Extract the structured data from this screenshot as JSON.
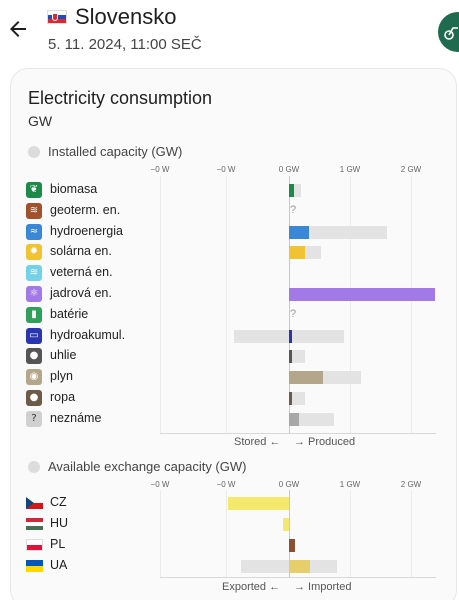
{
  "header": {
    "country": "Slovensko",
    "datetime": "5. 11. 2024, 11:00 SEČ",
    "back_icon": "arrow-left-icon",
    "fab_icon": "bicycle-icon",
    "fab_color": "#1f6b4f"
  },
  "card": {
    "title": "Electricity consumption",
    "unit": "GW"
  },
  "installed": {
    "title": "Installed capacity (GW)",
    "ticks": [
      "−0 W",
      "−0 W",
      "0 GW",
      "1 GW",
      "2 GW"
    ],
    "rows": [
      {
        "label": "biomasa",
        "icon": "leaf-icon",
        "color": "#1e8a4a",
        "capacity": 0.2,
        "production": 0.09
      },
      {
        "label": "geoterm. en.",
        "icon": "geothermal-icon",
        "color": "#a0522d",
        "unknown": "?"
      },
      {
        "label": "hydroenergia",
        "icon": "water-icon",
        "color": "#3a87d6",
        "capacity": 1.6,
        "production": 0.33
      },
      {
        "label": "solárna en.",
        "icon": "sun-icon",
        "color": "#f1c232",
        "capacity": 0.52,
        "production": 0.27
      },
      {
        "label": "veterná en.",
        "icon": "wind-icon",
        "color": "#72d3e8"
      },
      {
        "label": "jadrová en.",
        "icon": "atom-icon",
        "color": "#a27ae8",
        "capacity": 2.4,
        "production": 2.4
      },
      {
        "label": "batérie",
        "icon": "battery-icon",
        "color": "#2fa05a",
        "unknown": "?"
      },
      {
        "label": "hydroakumul.",
        "icon": "pumped-storage-icon",
        "color": "#2a35b0",
        "capacity": 0.9,
        "storage_capacity": 0.9,
        "production": 0.05
      },
      {
        "label": "uhlie",
        "icon": "coal-icon",
        "color": "#555555",
        "capacity": 0.27,
        "production": 0.02
      },
      {
        "label": "plyn",
        "icon": "gas-icon",
        "color": "#b4a68a",
        "capacity": 1.18,
        "production": 0.55
      },
      {
        "label": "ropa",
        "icon": "oil-icon",
        "color": "#6e5a48",
        "capacity": 0.26,
        "production": 0.03
      },
      {
        "label": "neznáme",
        "icon": "question-icon",
        "color": "#a8a8a8",
        "capacity": 0.74,
        "production": 0.16
      }
    ],
    "note_left": "Stored ←",
    "note_right": "→ Produced"
  },
  "exchange": {
    "title": "Available exchange capacity (GW)",
    "ticks": [
      "−0 W",
      "−0 W",
      "0 GW",
      "1 GW",
      "2 GW"
    ],
    "rows": [
      {
        "label": "CZ",
        "icon": "flag-cz-icon",
        "color": "#f4e96c",
        "value": -1.0
      },
      {
        "label": "HU",
        "icon": "flag-hu-icon",
        "color": "#f4e96c",
        "value": -0.1
      },
      {
        "label": "PL",
        "icon": "flag-pl-icon",
        "color": "#8a4f2e",
        "value": 0.1
      },
      {
        "label": "UA",
        "icon": "flag-ua-icon",
        "color": "#e6cf6a",
        "value": 0.35,
        "capacity_pos": 0.78,
        "capacity_neg": 0.78
      }
    ],
    "note_left": "Exported ←",
    "note_right": "→ Imported"
  }
}
